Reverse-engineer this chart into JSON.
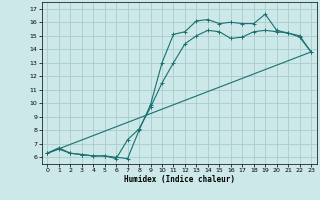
{
  "xlabel": "Humidex (Indice chaleur)",
  "background_color": "#cce8e8",
  "grid_color": "#aacccc",
  "line_color": "#1a7070",
  "xlim": [
    -0.5,
    23.5
  ],
  "ylim": [
    5.5,
    17.5
  ],
  "xticks": [
    0,
    1,
    2,
    3,
    4,
    5,
    6,
    7,
    8,
    9,
    10,
    11,
    12,
    13,
    14,
    15,
    16,
    17,
    18,
    19,
    20,
    21,
    22,
    23
  ],
  "yticks": [
    6,
    7,
    8,
    9,
    10,
    11,
    12,
    13,
    14,
    15,
    16,
    17
  ],
  "curve1_x": [
    0,
    1,
    2,
    3,
    4,
    5,
    6,
    7,
    8,
    9,
    10,
    11,
    12,
    13,
    14,
    15,
    16,
    17,
    18,
    19,
    20,
    21,
    22,
    23
  ],
  "curve1_y": [
    6.3,
    6.6,
    6.3,
    6.2,
    6.1,
    6.1,
    6.0,
    5.9,
    8.0,
    9.9,
    13.0,
    15.1,
    15.3,
    16.1,
    16.2,
    15.9,
    16.0,
    15.9,
    15.9,
    16.6,
    15.4,
    15.2,
    15.0,
    13.8
  ],
  "curve2_x": [
    0,
    1,
    2,
    3,
    4,
    5,
    6,
    7,
    8,
    9,
    10,
    11,
    12,
    13,
    14,
    15,
    16,
    17,
    18,
    19,
    20,
    21,
    22,
    23
  ],
  "curve2_y": [
    6.3,
    6.7,
    6.3,
    6.2,
    6.1,
    6.1,
    5.9,
    7.3,
    8.1,
    9.7,
    11.5,
    13.0,
    14.4,
    15.0,
    15.4,
    15.3,
    14.8,
    14.9,
    15.3,
    15.4,
    15.3,
    15.2,
    14.9,
    13.8
  ],
  "line_x": [
    0,
    23
  ],
  "line_y": [
    6.3,
    13.8
  ]
}
